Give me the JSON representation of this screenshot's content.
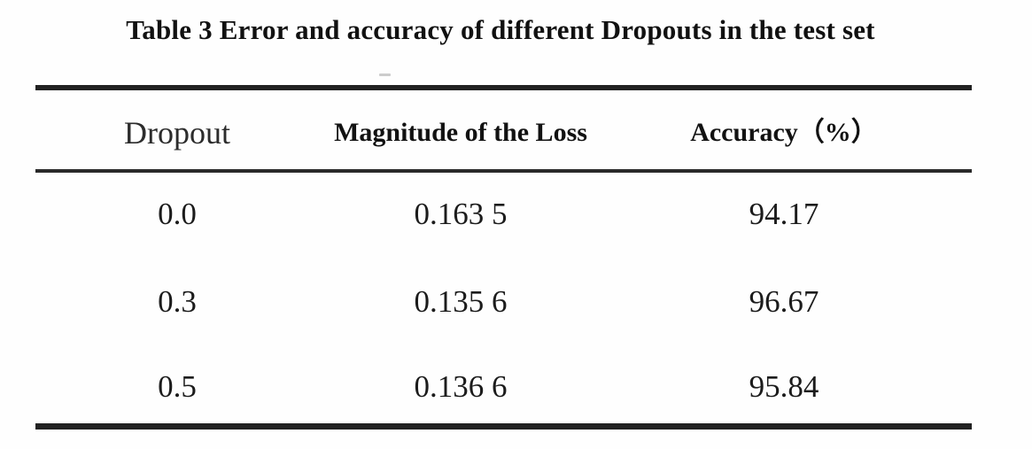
{
  "title": "Table 3 Error and accuracy of different Dropouts in the test set",
  "table": {
    "columns": [
      "Dropout",
      "Magnitude of the Loss",
      "Accuracy（%）"
    ],
    "rows": [
      {
        "dropout": "0.0",
        "loss": "0.163 5",
        "accuracy": "94.17"
      },
      {
        "dropout": "0.3",
        "loss": "0.135 6",
        "accuracy": "96.67"
      },
      {
        "dropout": "0.5",
        "loss": "0.136 6",
        "accuracy": "95.84"
      }
    ]
  },
  "colors": {
    "rule": "#222222",
    "text": "#161616",
    "background": "#fefefe",
    "artifact": "#cccccc"
  },
  "chart_data": {
    "type": "table",
    "title": "Table 3 Error and accuracy of different Dropouts in the test set",
    "categories": [
      "Dropout",
      "Magnitude of the Loss",
      "Accuracy (%)"
    ],
    "series": [
      {
        "name": "Dropout",
        "values": [
          0.0,
          0.3,
          0.5
        ]
      },
      {
        "name": "Magnitude of the Loss",
        "values": [
          0.1635,
          0.1356,
          0.1366
        ]
      },
      {
        "name": "Accuracy (%)",
        "values": [
          94.17,
          96.67,
          95.84
        ]
      }
    ]
  }
}
